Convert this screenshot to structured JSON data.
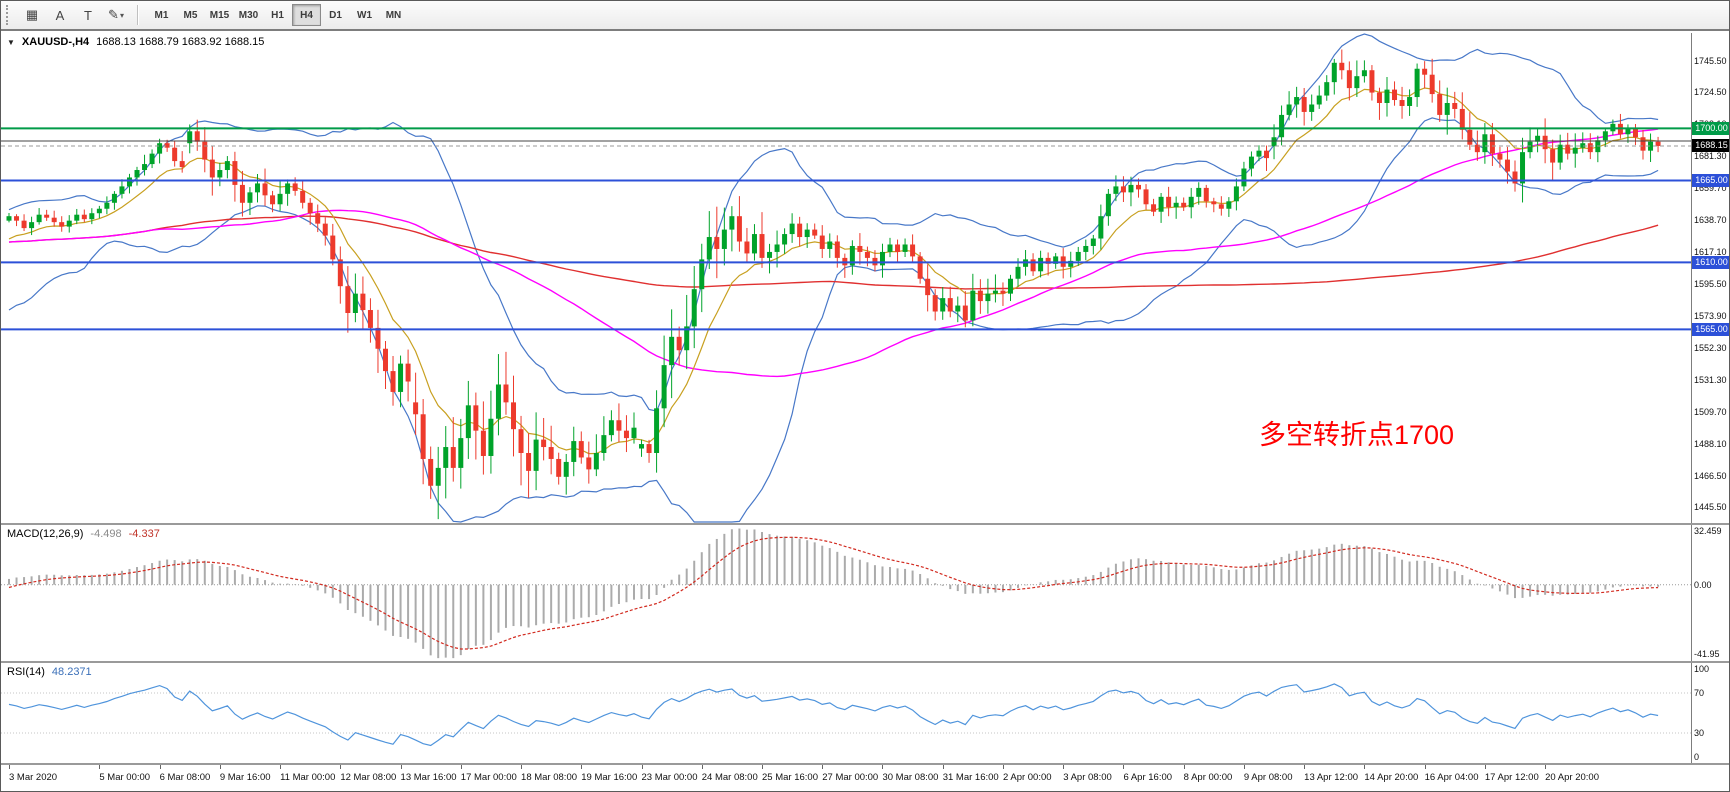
{
  "icons": {
    "dropdown": "▼",
    "caret": "▾"
  },
  "toolbar": {
    "icons": [
      {
        "name": "chart-grid-icon",
        "glyph": "▦"
      },
      {
        "name": "cursor-tool-icon",
        "glyph": "A"
      },
      {
        "name": "text-tool-icon",
        "glyph": "T"
      },
      {
        "name": "draw-tools-icon",
        "glyph": "✎",
        "caret": true
      }
    ],
    "timeframes": [
      "M1",
      "M5",
      "M15",
      "M30",
      "H1",
      "H4",
      "D1",
      "W1",
      "MN"
    ],
    "active_timeframe": "H4"
  },
  "colors": {
    "candle_up": "#00A32A",
    "candle_down": "#ED3A2C",
    "bollinger": "#4878C8",
    "ma_fast": "#C8A020",
    "ma_mid": "#FF00FF",
    "ma_slow": "#E03030",
    "macd_hist": "#ABABAB",
    "macd_signal": "#D22B20",
    "rsi_line": "#4F94DC",
    "level_green": "#009B48",
    "level_blue": "#2C50D8",
    "current_tag_bg": "#000000",
    "annotation_red": "#FF0000"
  },
  "chart_data": [
    {
      "type": "candlestick",
      "symbol": "XAUUSD",
      "timeframe": "H4",
      "title": "XAUUSD-,H4",
      "ohlc_text": "1688.13 1688.79 1683.92 1688.15",
      "ohlc": {
        "open": "1688.13",
        "high": "1688.79",
        "low": "1683.92",
        "close": "1688.15"
      },
      "annotation": {
        "text": "多空转折点1700",
        "color": "#FF0000"
      },
      "ylim": [
        1435,
        1764
      ],
      "price_axis_labels": [
        "1745.50",
        "1724.50",
        "1703.10",
        "1681.30",
        "1659.70",
        "1638.70",
        "1617.10",
        "1595.50",
        "1573.90",
        "1552.30",
        "1531.30",
        "1509.70",
        "1488.10",
        "1466.50",
        "1445.50"
      ],
      "levels": [
        {
          "price": 1700.0,
          "label": "1700.00",
          "color": "#009B48",
          "width": 2
        },
        {
          "price": 1665.0,
          "label": "1665.00",
          "color": "#2C50D8",
          "width": 2
        },
        {
          "price": 1610.0,
          "label": "1610.00",
          "color": "#2C50D8",
          "width": 2
        },
        {
          "price": 1565.0,
          "label": "1565.00",
          "color": "#2C50D8",
          "width": 2
        }
      ],
      "gray_line": {
        "price": 1691.5,
        "color": "#444444",
        "width": 1
      },
      "current_price": {
        "value": 1688.15,
        "label": "1688.15"
      },
      "x_labels": [
        "3 Mar 2020",
        "5 Mar 00:00",
        "6 Mar 08:00",
        "9 Mar 16:00",
        "11 Mar 00:00",
        "12 Mar 08:00",
        "13 Mar 16:00",
        "17 Mar 00:00",
        "18 Mar 08:00",
        "19 Mar 16:00",
        "23 Mar 00:00",
        "24 Mar 08:00",
        "25 Mar 16:00",
        "27 Mar 00:00",
        "30 Mar 08:00",
        "31 Mar 16:00",
        "2 Apr 00:00",
        "3 Apr 08:00",
        "6 Apr 16:00",
        "8 Apr 00:00",
        "9 Apr 08:00",
        "13 Apr 12:00",
        "14 Apr 20:00",
        "16 Apr 04:00",
        "17 Apr 12:00",
        "20 Apr 20:00"
      ],
      "label_bars": [
        0,
        12,
        20,
        28,
        36,
        44,
        52,
        60,
        68,
        76,
        84,
        92,
        100,
        108,
        116,
        124,
        132,
        140,
        148,
        156,
        164,
        172,
        180,
        188,
        196,
        204
      ],
      "overlays": {
        "bollinger": {
          "period": 20,
          "deviation": 2
        },
        "ema_fast": 10,
        "sma_mid": 60,
        "sma_slow": 150
      },
      "prehistory_closes": [
        1660,
        1670,
        1680,
        1689,
        1678,
        1665,
        1650,
        1640,
        1655,
        1645,
        1635,
        1642,
        1630,
        1618,
        1610,
        1625,
        1615,
        1600,
        1588,
        1575,
        1563,
        1585,
        1598,
        1590,
        1586,
        1592,
        1600,
        1608,
        1615,
        1622,
        1610,
        1598,
        1605,
        1612,
        1620,
        1628,
        1635,
        1630,
        1625,
        1634
      ],
      "closes": [
        1641,
        1638,
        1633,
        1637,
        1642,
        1640,
        1637,
        1634,
        1638,
        1642,
        1639,
        1643,
        1646,
        1650,
        1656,
        1661,
        1667,
        1672,
        1676,
        1683,
        1690,
        1687,
        1678,
        1674,
        1698,
        1691,
        1679,
        1667,
        1672,
        1678,
        1662,
        1650,
        1657,
        1663,
        1655,
        1649,
        1656,
        1663,
        1658,
        1650,
        1643,
        1636,
        1628,
        1612,
        1594,
        1576,
        1589,
        1578,
        1566,
        1552,
        1537,
        1523,
        1542,
        1530,
        1508,
        1478,
        1460,
        1472,
        1486,
        1472,
        1492,
        1514,
        1497,
        1480,
        1505,
        1528,
        1516,
        1498,
        1482,
        1470,
        1491,
        1486,
        1478,
        1466,
        1476,
        1490,
        1479,
        1471,
        1482,
        1494,
        1504,
        1497,
        1492,
        1499,
        1488,
        1482,
        1512,
        1541,
        1560,
        1551,
        1567,
        1592,
        1612,
        1627,
        1619,
        1632,
        1641,
        1624,
        1616,
        1629,
        1613,
        1617,
        1622,
        1629,
        1636,
        1627,
        1632,
        1628,
        1619,
        1624,
        1613,
        1608,
        1621,
        1617,
        1613,
        1608,
        1617,
        1622,
        1617,
        1622,
        1614,
        1599,
        1588,
        1577,
        1586,
        1577,
        1581,
        1571,
        1591,
        1584,
        1589,
        1591,
        1589,
        1599,
        1607,
        1612,
        1604,
        1613,
        1609,
        1614,
        1607,
        1611,
        1617,
        1621,
        1626,
        1641,
        1656,
        1661,
        1657,
        1662,
        1659,
        1649,
        1644,
        1654,
        1647,
        1650,
        1647,
        1654,
        1660,
        1651,
        1649,
        1646,
        1651,
        1661,
        1673,
        1681,
        1685,
        1680,
        1694,
        1709,
        1716,
        1721,
        1711,
        1716,
        1722,
        1731,
        1744,
        1739,
        1727,
        1735,
        1739,
        1724,
        1717,
        1726,
        1719,
        1715,
        1721,
        1740,
        1736,
        1723,
        1709,
        1717,
        1713,
        1699,
        1689,
        1684,
        1696,
        1683,
        1679,
        1671,
        1663,
        1684,
        1691,
        1695,
        1686,
        1677,
        1689,
        1683,
        1687,
        1690,
        1684,
        1692,
        1698,
        1703,
        1696,
        1700,
        1694,
        1685,
        1691,
        1688.15
      ],
      "open_overrides": {
        "24": 1690,
        "54": 1516,
        "84": 1485,
        "168": 1688
      },
      "extreme_overrides": {
        "20": {
          "high": 1693.0
        },
        "24": {
          "high": 1702.6
        },
        "56": {
          "low": 1451.2
        },
        "73": {
          "low": 1460.8
        },
        "176": {
          "high": 1746.6
        },
        "187": {
          "high": 1743.5
        },
        "200": {
          "low": 1657.5
        }
      }
    },
    {
      "type": "macd",
      "title": "MACD(12,26,9)",
      "value_main": "-4.498",
      "value_signal": "-4.337",
      "params": {
        "fast": 12,
        "slow": 26,
        "signal": 9
      },
      "ylim": [
        -46,
        36
      ],
      "axis_labels": [
        {
          "text": "32.459",
          "value": 32.459
        },
        {
          "text": "0.00",
          "value": 0
        },
        {
          "text": "-41.95",
          "value": -41.95
        }
      ]
    },
    {
      "type": "rsi",
      "title": "RSI(14)",
      "value": "48.2371",
      "period": 14,
      "ylim": [
        0,
        100
      ],
      "guide_levels": [
        70,
        30
      ],
      "axis_labels": [
        {
          "text": "100",
          "value": 100
        },
        {
          "text": "70",
          "value": 70
        },
        {
          "text": "30",
          "value": 30
        },
        {
          "text": "0",
          "value": 0
        }
      ]
    }
  ]
}
